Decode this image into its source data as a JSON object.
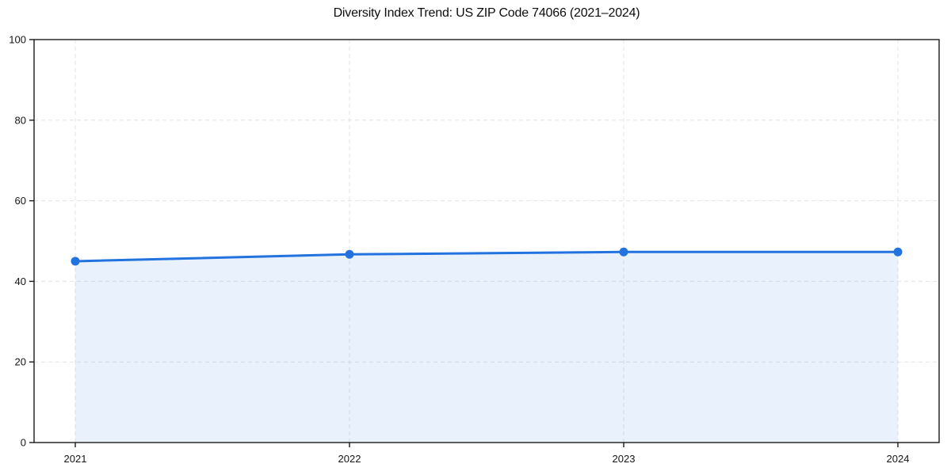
{
  "chart_data": {
    "type": "area",
    "title": "Diversity Index Trend: US ZIP Code 74066 (2021–2024)",
    "categories": [
      "2021",
      "2022",
      "2023",
      "2024"
    ],
    "series": [
      {
        "name": "Diversity Index",
        "values": [
          45.0,
          46.7,
          47.3,
          47.3
        ]
      }
    ],
    "xlabel": "",
    "ylabel": "",
    "ylim": [
      0,
      100
    ],
    "yticks": [
      0,
      20,
      40,
      60,
      80,
      100
    ],
    "grid": "dashed",
    "legend": "none",
    "colors": {
      "line": "#2272e0",
      "marker": "#2272e0",
      "area_fill": "rgba(34,114,224,0.10)",
      "gridline": "#e3e3e3",
      "spine": "#1a1a1a",
      "tick_label": "#141414"
    }
  }
}
